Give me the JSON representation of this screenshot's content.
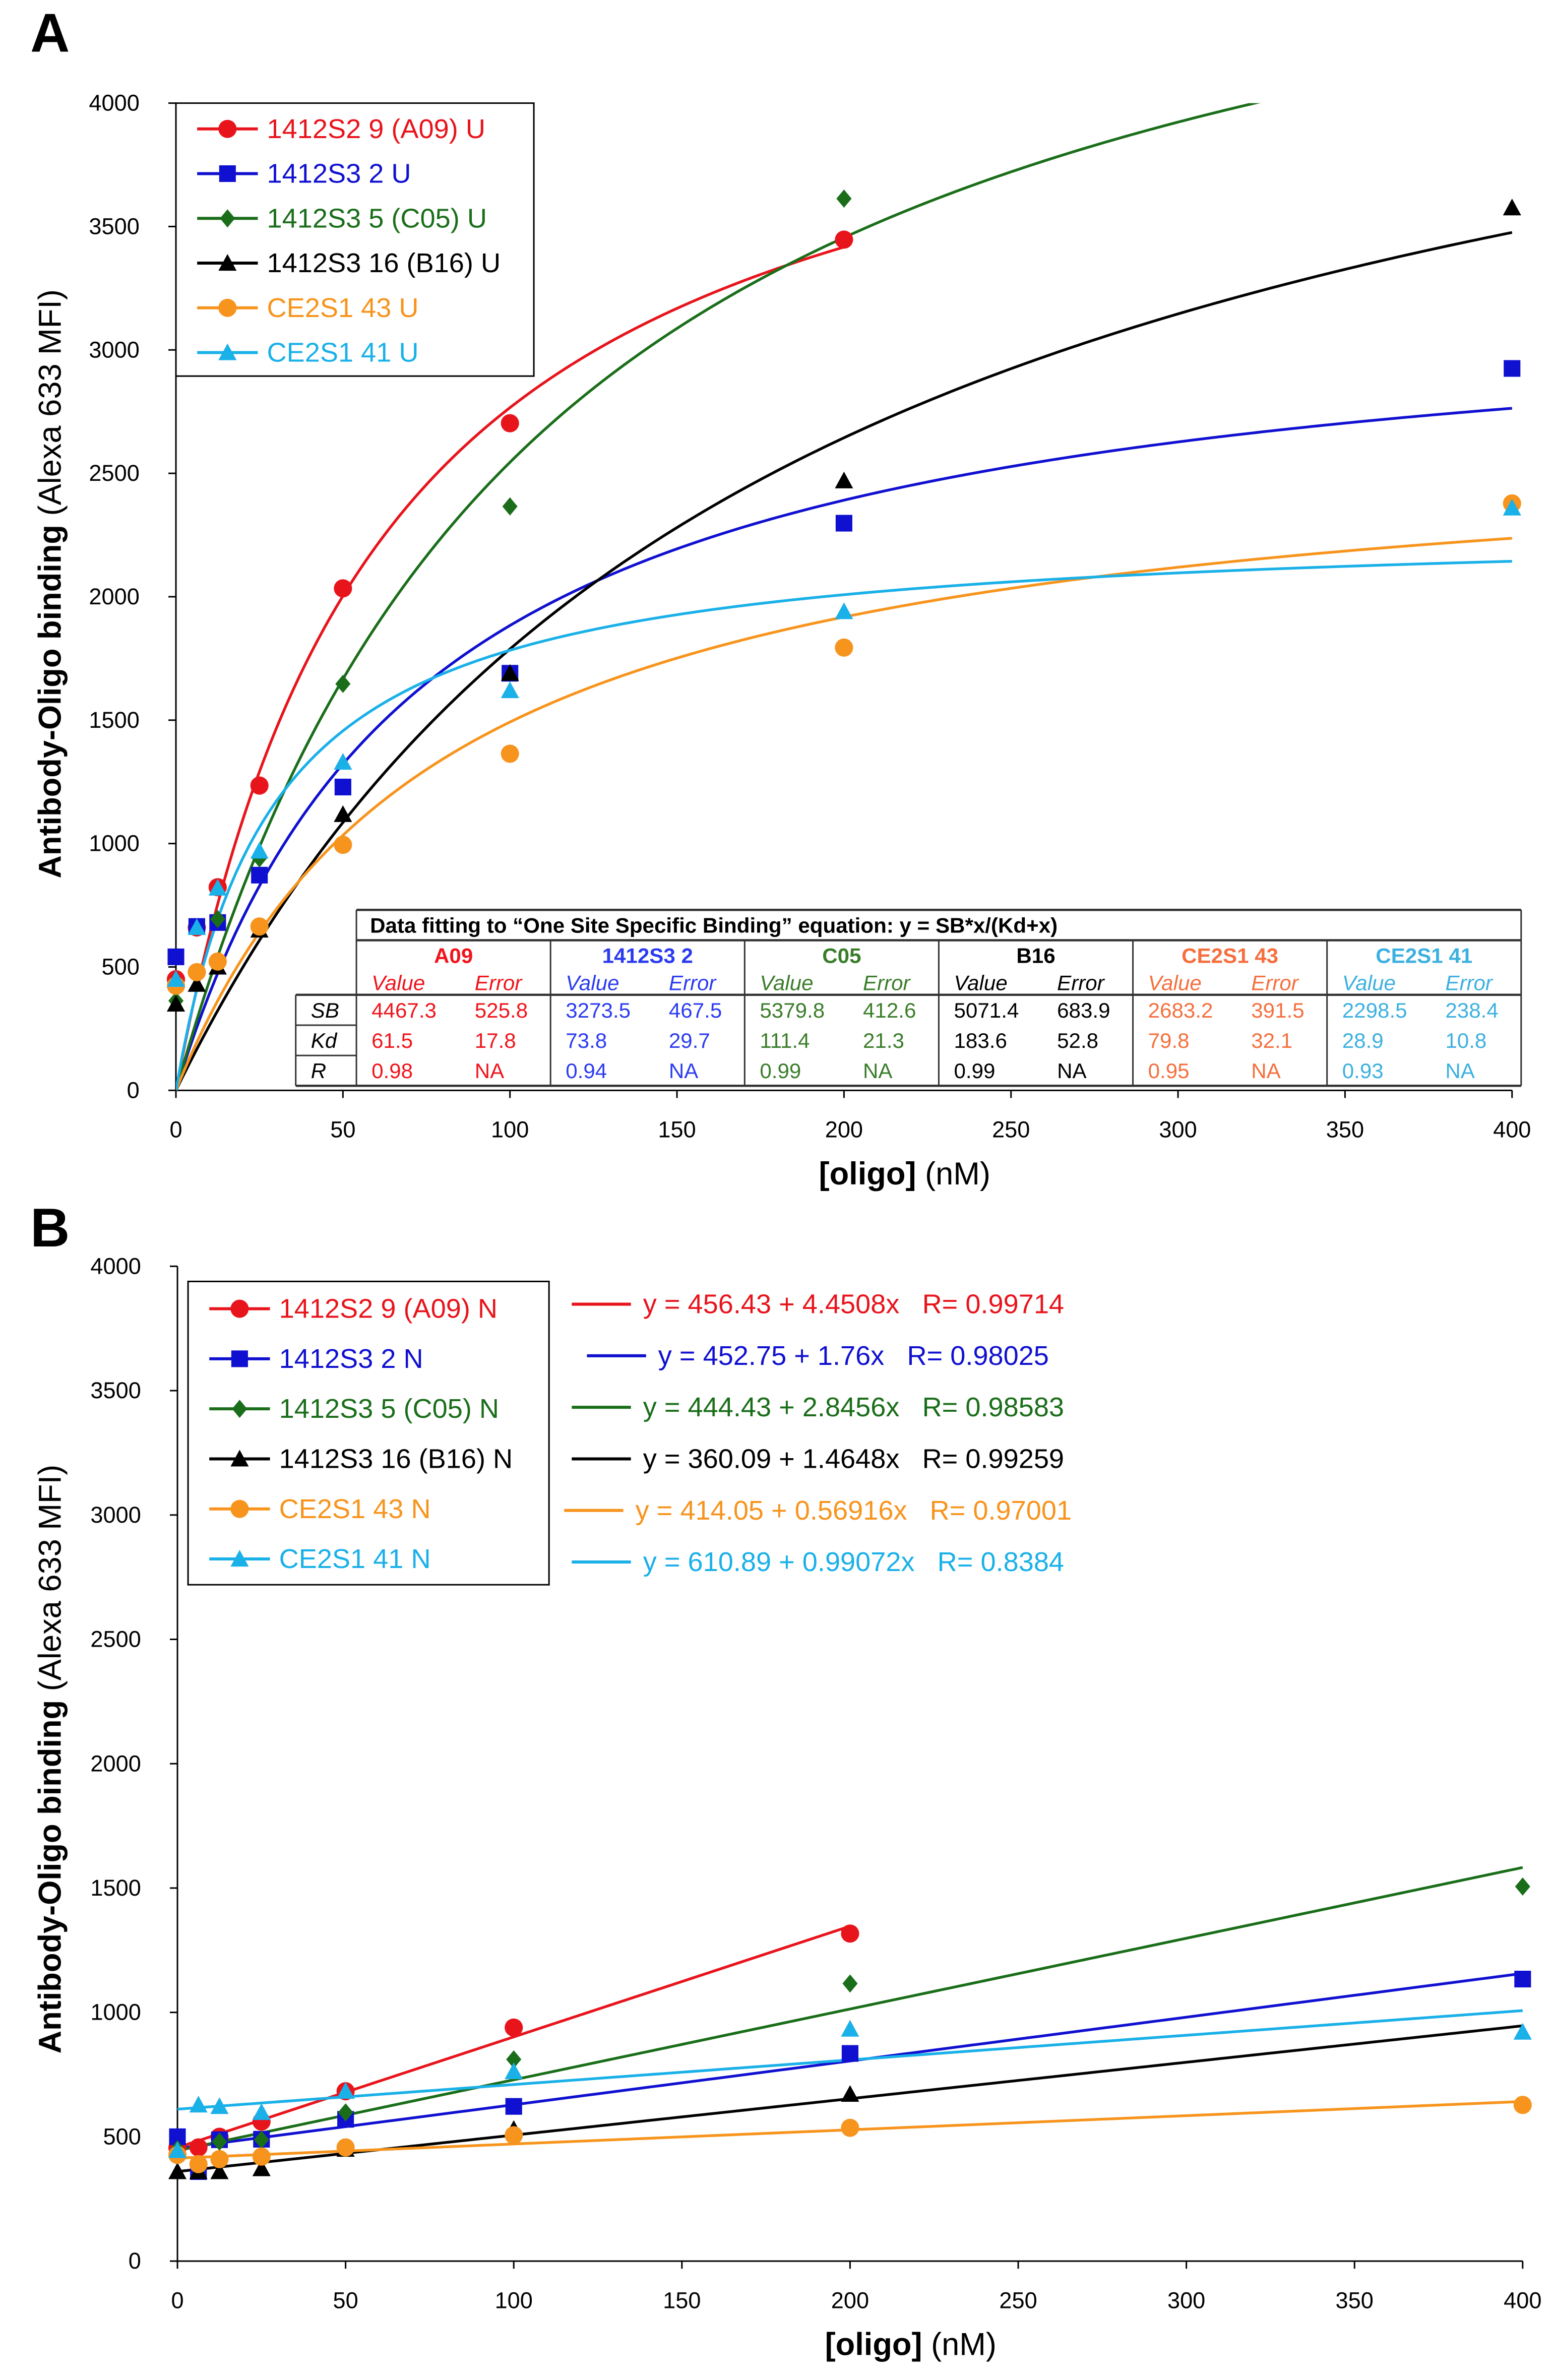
{
  "panels": [
    {
      "letter": "A"
    },
    {
      "letter": "B"
    }
  ],
  "chart_data": [
    {
      "type": "scatter",
      "panel": "A",
      "ylabel_bold": "Antibody-Oligo binding",
      "ylabel_normal": " (Alexa 633 MFI)",
      "xlabel_bold": "[oligo]",
      "xlabel_normal": " (nM)",
      "xlim": [
        0,
        400
      ],
      "ylim": [
        0,
        4000
      ],
      "xticks": [
        0,
        50,
        100,
        150,
        200,
        250,
        300,
        350,
        400
      ],
      "yticks": [
        0,
        500,
        1000,
        1500,
        2000,
        2500,
        3000,
        3500,
        4000
      ],
      "legend_position": "top-left",
      "fit": "one-site-specific-binding",
      "series": [
        {
          "name": "1412S2 9 (A09) U",
          "color": "#e8141c",
          "marker": "circle",
          "SB": 4467.3,
          "Kd": 61.5,
          "fit_xmax": 200,
          "x": [
            0,
            6.25,
            12.5,
            25,
            50,
            100,
            200
          ],
          "y": [
            450,
            660,
            823,
            1235,
            2034,
            2703,
            3447
          ]
        },
        {
          "name": "1412S3 2 U",
          "color": "#1010d0",
          "marker": "square",
          "SB": 3273.5,
          "Kd": 73.8,
          "fit_xmax": 400,
          "x": [
            0,
            6.25,
            12.5,
            25,
            50,
            100,
            200,
            400
          ],
          "y": [
            541,
            664,
            680,
            872,
            1229,
            1690,
            2298,
            2925
          ]
        },
        {
          "name": "1412S3 5 (C05) U",
          "color": "#1a6e1a",
          "marker": "diamond",
          "SB": 5379.8,
          "Kd": 111.4,
          "fit_xmax": 400,
          "x": [
            0,
            12.5,
            25,
            50,
            100,
            200
          ],
          "y": [
            363,
            694,
            940,
            1647,
            2366,
            3613
          ]
        },
        {
          "name": "1412S3 16 (B16) U",
          "color": "#000000",
          "marker": "triangle",
          "SB": 5071.4,
          "Kd": 183.6,
          "fit_xmax": 400,
          "x": [
            0,
            6.25,
            12.5,
            25,
            50,
            100,
            200,
            400
          ],
          "y": [
            350,
            430,
            500,
            650,
            1118,
            1690,
            2470,
            3576
          ]
        },
        {
          "name": "CE2S1 43 U",
          "color": "#f7941d",
          "marker": "circle",
          "SB": 2683.2,
          "Kd": 79.8,
          "fit_xmax": 400,
          "x": [
            0,
            6.25,
            12.5,
            25,
            50,
            100,
            200,
            400
          ],
          "y": [
            424,
            479,
            522,
            664,
            995,
            1364,
            1794,
            2378
          ]
        },
        {
          "name": "CE2S1 41 U",
          "color": "#1ab0e8",
          "marker": "triangle",
          "SB": 2298.5,
          "Kd": 28.9,
          "fit_xmax": 400,
          "x": [
            0,
            6.25,
            12.5,
            25,
            50,
            100,
            200,
            400
          ],
          "y": [
            450,
            660,
            820,
            970,
            1330,
            1620,
            1940,
            2360
          ]
        }
      ],
      "table": {
        "title": "Data fitting to “One Site Specific Binding” equation: y = SB*x/(Kd+x)",
        "row_labels": [
          "SB",
          "Kd",
          "R"
        ],
        "value_label": "Value",
        "error_label": "Error",
        "columns": [
          {
            "name": "A09",
            "color": "#f0141c",
            "rows": [
              [
                "4467.3",
                "525.8"
              ],
              [
                "61.5",
                "17.8"
              ],
              [
                "0.98",
                "NA"
              ]
            ]
          },
          {
            "name": "1412S3 2",
            "color": "#2b3bf0",
            "rows": [
              [
                "3273.5",
                "467.5"
              ],
              [
                "73.8",
                "29.7"
              ],
              [
                "0.94",
                "NA"
              ]
            ]
          },
          {
            "name": "C05",
            "color": "#3a7d2a",
            "rows": [
              [
                "5379.8",
                "412.6"
              ],
              [
                "111.4",
                "21.3"
              ],
              [
                "0.99",
                "NA"
              ]
            ]
          },
          {
            "name": "B16",
            "color": "#000000",
            "rows": [
              [
                "5071.4",
                "683.9"
              ],
              [
                "183.6",
                "52.8"
              ],
              [
                "0.99",
                "NA"
              ]
            ]
          },
          {
            "name": "CE2S1 43",
            "color": "#f56f3e",
            "rows": [
              [
                "2683.2",
                "391.5"
              ],
              [
                "79.8",
                "32.1"
              ],
              [
                "0.95",
                "NA"
              ]
            ]
          },
          {
            "name": "CE2S1 41",
            "color": "#3cb0e0",
            "rows": [
              [
                "2298.5",
                "238.4"
              ],
              [
                "28.9",
                "10.8"
              ],
              [
                "0.93",
                "NA"
              ]
            ]
          }
        ]
      }
    },
    {
      "type": "scatter",
      "panel": "B",
      "ylabel_bold": "Antibody-Oligo binding",
      "ylabel_normal": " (Alexa 633 MFI)",
      "xlabel_bold": "[oligo]",
      "xlabel_normal": " (nM)",
      "xlim": [
        0,
        400
      ],
      "ylim": [
        0,
        4000
      ],
      "xticks": [
        0,
        50,
        100,
        150,
        200,
        250,
        300,
        350,
        400
      ],
      "yticks": [
        0,
        500,
        1000,
        1500,
        2000,
        2500,
        3000,
        3500,
        4000
      ],
      "legend_position": "top-left",
      "fit": "linear",
      "series": [
        {
          "name": "1412S2 9 (A09) N",
          "color": "#e8141c",
          "marker": "circle",
          "intercept": 456.43,
          "slope": 4.4508,
          "fit_xmax": 200,
          "equation": "y = 456.43 + 4.4508x   R= 0.99714",
          "x": [
            0,
            6.25,
            12.5,
            25,
            50,
            100,
            200
          ],
          "y": [
            456,
            457,
            500,
            561,
            683,
            939,
            1317
          ]
        },
        {
          "name": "1412S3 2 N",
          "color": "#1010d0",
          "marker": "square",
          "intercept": 452.75,
          "slope": 1.76,
          "fit_xmax": 400,
          "equation": "y = 452.75 + 1.76x   R= 0.98025",
          "x": [
            0,
            6.25,
            12.5,
            25,
            50,
            100,
            200,
            400
          ],
          "y": [
            500,
            360,
            488,
            490,
            570,
            622,
            835,
            1134
          ]
        },
        {
          "name": "1412S3 5 (C05) N",
          "color": "#1a6e1a",
          "marker": "diamond",
          "intercept": 444.43,
          "slope": 2.8456,
          "fit_xmax": 400,
          "equation": "y = 444.43 + 2.8456x   R= 0.98583",
          "x": [
            0,
            12.5,
            25,
            50,
            100,
            200,
            400
          ],
          "y": [
            450,
            480,
            488,
            598,
            811,
            1116,
            1506
          ]
        },
        {
          "name": "1412S3 16 (B16) N",
          "color": "#000000",
          "marker": "triangle",
          "intercept": 360.09,
          "slope": 1.4648,
          "fit_xmax": 400,
          "equation": "y = 360.09 + 1.4648x   R= 0.99259",
          "x": [
            0,
            6.25,
            12.5,
            25,
            50,
            100,
            200
          ],
          "y": [
            360,
            360,
            360,
            372,
            450,
            530,
            671
          ]
        },
        {
          "name": "CE2S1 43 N",
          "color": "#f7941d",
          "marker": "circle",
          "intercept": 414.05,
          "slope": 0.56916,
          "fit_xmax": 400,
          "equation": "y = 414.05 + 0.56916x   R= 0.97001",
          "x": [
            0,
            6.25,
            12.5,
            25,
            50,
            100,
            200,
            400
          ],
          "y": [
            427,
            390,
            410,
            420,
            457,
            506,
            536,
            628
          ]
        },
        {
          "name": "CE2S1 41 N",
          "color": "#1ab0e8",
          "marker": "triangle",
          "intercept": 610.89,
          "slope": 0.99072,
          "fit_xmax": 400,
          "equation": "y = 610.89 + 0.99072x   R= 0.8384",
          "x": [
            0,
            6.25,
            12.5,
            25,
            50,
            100,
            200,
            400
          ],
          "y": [
            445,
            628,
            622,
            598,
            683,
            762,
            933,
            921
          ]
        }
      ]
    }
  ]
}
